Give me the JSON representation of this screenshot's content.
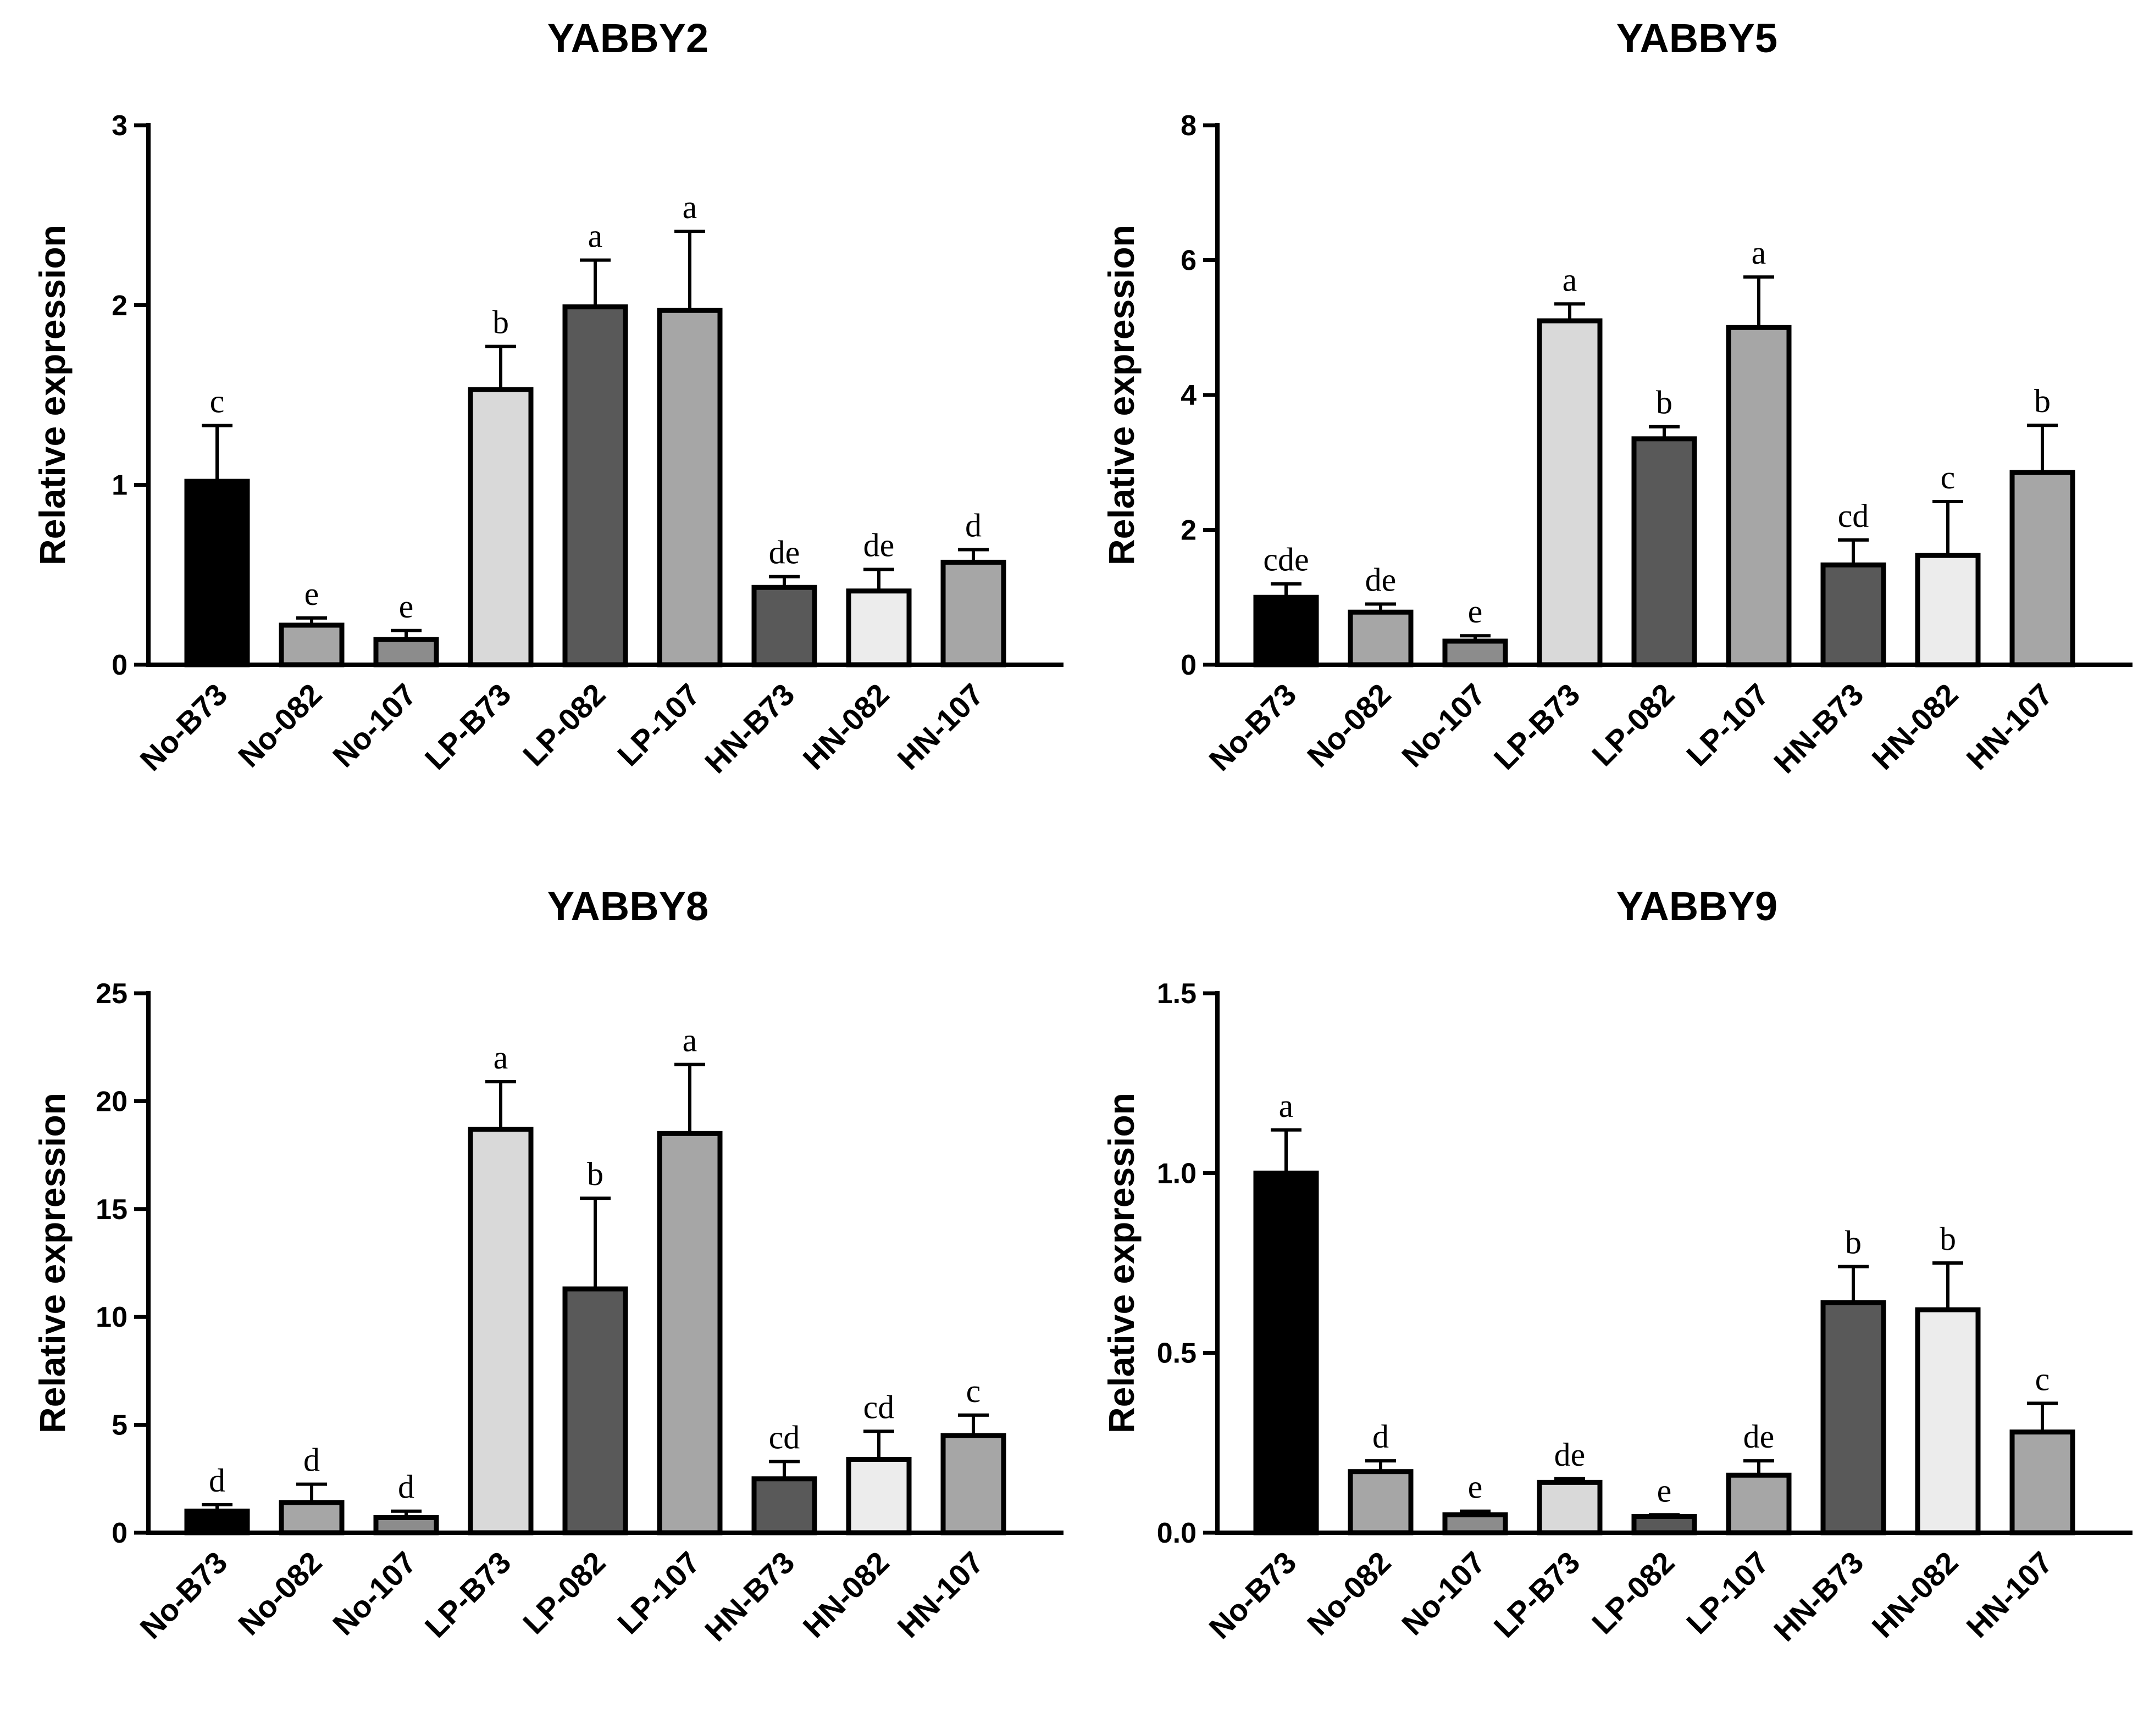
{
  "chart_data": [
    {
      "type": "bar",
      "title": "YABBY2",
      "ylabel": "Relative expression",
      "xlabel": "",
      "ylim": [
        0,
        3
      ],
      "yticks": [
        "0",
        "1",
        "2",
        "3"
      ],
      "ytick_values": [
        0,
        1,
        2,
        3
      ],
      "categories": [
        "No-B73",
        "No-082",
        "No-107",
        "LP-B73",
        "LP-082",
        "LP-107",
        "HN-B73",
        "HN-082",
        "HN-107"
      ],
      "values": [
        1.02,
        0.22,
        0.14,
        1.53,
        1.99,
        1.97,
        0.43,
        0.41,
        0.57
      ],
      "errors": [
        0.31,
        0.04,
        0.05,
        0.24,
        0.26,
        0.44,
        0.06,
        0.12,
        0.07
      ],
      "letters": [
        "c",
        "e",
        "e",
        "b",
        "a",
        "a",
        "de",
        "de",
        "d"
      ],
      "colors": [
        "#000000",
        "#a6a6a6",
        "#8c8c8c",
        "#d9d9d9",
        "#595959",
        "#a6a6a6",
        "#595959",
        "#ececec",
        "#a6a6a6"
      ]
    },
    {
      "type": "bar",
      "title": "YABBY5",
      "ylabel": "Relative expression",
      "xlabel": "",
      "ylim": [
        0,
        8
      ],
      "yticks": [
        "0",
        "2",
        "4",
        "6",
        "8"
      ],
      "ytick_values": [
        0,
        2,
        4,
        6,
        8
      ],
      "categories": [
        "No-B73",
        "No-082",
        "No-107",
        "LP-B73",
        "LP-082",
        "LP-107",
        "HN-B73",
        "HN-082",
        "HN-107"
      ],
      "values": [
        1.0,
        0.78,
        0.35,
        5.1,
        3.35,
        5.0,
        1.48,
        1.62,
        2.85
      ],
      "errors": [
        0.2,
        0.12,
        0.08,
        0.25,
        0.18,
        0.75,
        0.37,
        0.8,
        0.7
      ],
      "letters": [
        "cde",
        "de",
        "e",
        "a",
        "b",
        "a",
        "cd",
        "c",
        "b"
      ],
      "colors": [
        "#000000",
        "#a6a6a6",
        "#8c8c8c",
        "#d9d9d9",
        "#595959",
        "#a6a6a6",
        "#595959",
        "#ececec",
        "#a6a6a6"
      ]
    },
    {
      "type": "bar",
      "title": "YABBY8",
      "ylabel": "Relative expression",
      "xlabel": "",
      "ylim": [
        0,
        25
      ],
      "yticks": [
        "0",
        "5",
        "10",
        "15",
        "20",
        "25"
      ],
      "ytick_values": [
        0,
        5,
        10,
        15,
        20,
        25
      ],
      "categories": [
        "No-B73",
        "No-082",
        "No-107",
        "LP-B73",
        "LP-082",
        "LP-107",
        "HN-B73",
        "HN-082",
        "HN-107"
      ],
      "values": [
        1.0,
        1.4,
        0.7,
        18.7,
        11.3,
        18.5,
        2.5,
        3.4,
        4.5
      ],
      "errors": [
        0.3,
        0.85,
        0.3,
        2.2,
        4.2,
        3.2,
        0.8,
        1.3,
        0.95
      ],
      "letters": [
        "d",
        "d",
        "d",
        "a",
        "b",
        "a",
        "cd",
        "cd",
        "c"
      ],
      "colors": [
        "#000000",
        "#a6a6a6",
        "#8c8c8c",
        "#d9d9d9",
        "#595959",
        "#a6a6a6",
        "#595959",
        "#ececec",
        "#a6a6a6"
      ]
    },
    {
      "type": "bar",
      "title": "YABBY9",
      "ylabel": "Relative expression",
      "xlabel": "",
      "ylim": [
        0,
        1.5
      ],
      "yticks": [
        "0.0",
        "0.5",
        "1.0",
        "1.5"
      ],
      "ytick_values": [
        0,
        0.5,
        1.0,
        1.5
      ],
      "categories": [
        "No-B73",
        "No-082",
        "No-107",
        "LP-B73",
        "LP-082",
        "LP-107",
        "HN-B73",
        "HN-082",
        "HN-107"
      ],
      "values": [
        1.0,
        0.17,
        0.05,
        0.14,
        0.045,
        0.16,
        0.64,
        0.62,
        0.28
      ],
      "errors": [
        0.12,
        0.03,
        0.01,
        0.01,
        0.005,
        0.04,
        0.1,
        0.13,
        0.08
      ],
      "letters": [
        "a",
        "d",
        "e",
        "de",
        "e",
        "de",
        "b",
        "b",
        "c"
      ],
      "colors": [
        "#000000",
        "#a6a6a6",
        "#8c8c8c",
        "#d9d9d9",
        "#595959",
        "#a6a6a6",
        "#595959",
        "#ececec",
        "#a6a6a6"
      ]
    }
  ]
}
